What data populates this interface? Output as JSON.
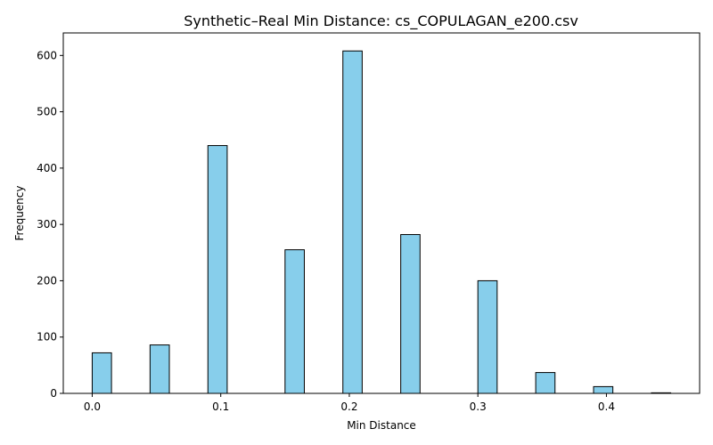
{
  "chart_data": {
    "type": "bar",
    "title": "Synthetic–Real Min Distance: cs_COPULAGAN_e200.csv",
    "xlabel": "Min Distance",
    "ylabel": "Frequency",
    "xlim": [
      -0.0225,
      0.4725
    ],
    "ylim": [
      0,
      640
    ],
    "x_ticks": [
      0.0,
      0.1,
      0.2,
      0.3,
      0.4
    ],
    "x_tick_labels": [
      "0.0",
      "0.1",
      "0.2",
      "0.3",
      "0.4"
    ],
    "y_ticks": [
      0,
      100,
      200,
      300,
      400,
      500,
      600
    ],
    "y_tick_labels": [
      "0",
      "100",
      "200",
      "300",
      "400",
      "500",
      "600"
    ],
    "bin_width": 0.015,
    "bins": [
      {
        "x_start": 0.0,
        "x_end": 0.015,
        "count": 72
      },
      {
        "x_start": 0.045,
        "x_end": 0.06,
        "count": 86
      },
      {
        "x_start": 0.09,
        "x_end": 0.105,
        "count": 440
      },
      {
        "x_start": 0.15,
        "x_end": 0.165,
        "count": 255
      },
      {
        "x_start": 0.195,
        "x_end": 0.21,
        "count": 608
      },
      {
        "x_start": 0.24,
        "x_end": 0.255,
        "count": 282
      },
      {
        "x_start": 0.3,
        "x_end": 0.315,
        "count": 200
      },
      {
        "x_start": 0.345,
        "x_end": 0.36,
        "count": 37
      },
      {
        "x_start": 0.39,
        "x_end": 0.405,
        "count": 12
      },
      {
        "x_start": 0.435,
        "x_end": 0.45,
        "count": 1
      }
    ],
    "bar_color": "#87CEEB",
    "edge_color": "#000000",
    "grid": false,
    "legend": false
  }
}
